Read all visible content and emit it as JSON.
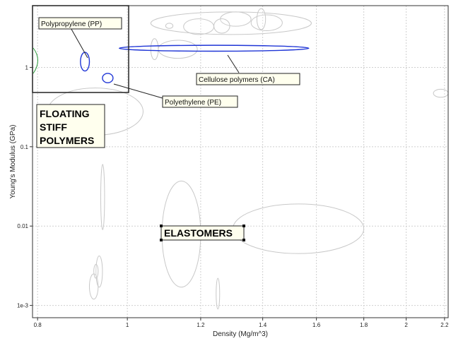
{
  "chart_data": {
    "type": "scatter",
    "title": "",
    "xlabel": "Density (Mg/m^3)",
    "ylabel": "Young's Modulus (GPa)",
    "xscale": "log",
    "yscale": "log",
    "xlim": [
      0.79,
      2.22
    ],
    "ylim": [
      0.0007,
      6
    ],
    "grid": true,
    "x_ticks": [
      {
        "value": 0.8,
        "label": "0.8"
      },
      {
        "value": 1,
        "label": "1"
      },
      {
        "value": 1.2,
        "label": "1.2"
      },
      {
        "value": 1.4,
        "label": "1.4"
      },
      {
        "value": 1.6,
        "label": "1.6"
      },
      {
        "value": 1.8,
        "label": "1.8"
      },
      {
        "value": 2,
        "label": "2"
      },
      {
        "value": 2.2,
        "label": "2.2"
      }
    ],
    "y_ticks": [
      {
        "value": 1,
        "label": "1"
      },
      {
        "value": 0.1,
        "label": "0.1"
      },
      {
        "value": 0.01,
        "label": "0.01"
      },
      {
        "value": 0.001,
        "label": "1e-3"
      }
    ],
    "bubbles": [
      {
        "density": [
          0.82,
          1.04
        ],
        "modulus": [
          0.14,
          0.55
        ],
        "highlight": false
      },
      {
        "density": [
          1.09,
          1.2
        ],
        "modulus": [
          0.0017,
          0.037
        ],
        "highlight": false
      },
      {
        "density": [
          1.3,
          1.8
        ],
        "modulus": [
          0.0045,
          0.019
        ],
        "highlight": false
      },
      {
        "density": [
          1.06,
          1.58
        ],
        "modulus": [
          2.6,
          5.0
        ],
        "highlight": false
      },
      {
        "density": [
          1.08,
          1.19
        ],
        "modulus": [
          1.3,
          2.2
        ],
        "highlight": false
      },
      {
        "density": [
          1.15,
          1.24
        ],
        "modulus": [
          2.6,
          4.1
        ],
        "highlight": false
      },
      {
        "density": [
          1.26,
          1.36
        ],
        "modulus": [
          3.3,
          5.0
        ],
        "highlight": false
      },
      {
        "density": [
          1.36,
          1.47
        ],
        "modulus": [
          2.9,
          4.6
        ],
        "highlight": false
      },
      {
        "density": [
          1.38,
          1.41
        ],
        "modulus": [
          3.0,
          5.5
        ],
        "highlight": false
      },
      {
        "density": [
          1.24,
          1.29
        ],
        "modulus": [
          2.7,
          4.1
        ],
        "highlight": false
      },
      {
        "density": [
          1.1,
          1.12
        ],
        "modulus": [
          3.1,
          3.6
        ],
        "highlight": false
      },
      {
        "density": [
          1.06,
          1.08
        ],
        "modulus": [
          1.25,
          2.3
        ],
        "highlight": false
      },
      {
        "density": [
          0.936,
          0.945
        ],
        "modulus": [
          0.009,
          0.06
        ],
        "highlight": false
      },
      {
        "density": [
          0.91,
          0.93
        ],
        "modulus": [
          0.0012,
          0.0025
        ],
        "highlight": false
      },
      {
        "density": [
          0.925,
          0.94
        ],
        "modulus": [
          0.0017,
          0.0042
        ],
        "highlight": false
      },
      {
        "density": [
          0.92,
          0.93
        ],
        "modulus": [
          0.0022,
          0.0033
        ],
        "highlight": false
      },
      {
        "density": [
          1.247,
          1.258
        ],
        "modulus": [
          0.0009,
          0.0022
        ],
        "highlight": false
      },
      {
        "density": [
          2.14,
          2.22
        ],
        "modulus": [
          0.42,
          0.53
        ],
        "highlight": false
      },
      {
        "density": [
          0.89,
          0.91
        ],
        "modulus": [
          0.9,
          1.55
        ],
        "highlight": true
      },
      {
        "density": [
          0.94,
          0.965
        ],
        "modulus": [
          0.64,
          0.84
        ],
        "highlight": true
      },
      {
        "density": [
          0.98,
          1.57
        ],
        "modulus": [
          1.6,
          1.9
        ],
        "highlight": true
      }
    ],
    "labels": {
      "polypropylene": "Polypropylene (PP)",
      "cellulose": "Cellulose polymers (CA)",
      "polyethylene": "Polyethylene (PE)",
      "floating_line1": "FLOATING",
      "floating_line2": "STIFF",
      "floating_line3": "POLYMERS",
      "elastomers": "ELASTOMERS"
    },
    "colors": {
      "highlight": "#1f35d6",
      "bubble": "#c8c8c8",
      "partial": "#2a9a3a",
      "grid": "#cfcfcf"
    }
  }
}
